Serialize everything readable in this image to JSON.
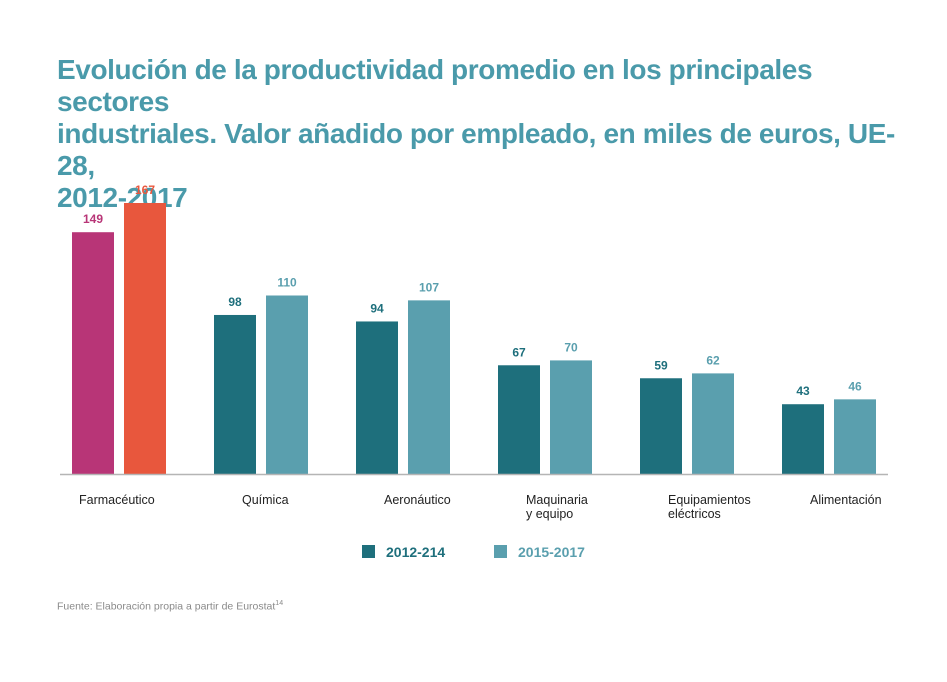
{
  "title": "Evolución de la productividad promedio en los principales sectores\nindustriales. Valor añadido por empleado, en miles de euros, UE-28,\n2012-2017",
  "source": {
    "text": "Fuente: Elaboración propia a partir de Eurostat",
    "footnote_mark": "14"
  },
  "colors": {
    "series1": "#1e6f7c",
    "series2": "#5a9fae",
    "highlight1": "#b83577",
    "highlight2": "#e8573d",
    "axis": "#b5b5b5",
    "title": "#4a9aaa"
  },
  "chart_data": {
    "type": "bar",
    "title": "Evolución de la productividad promedio en los principales sectores industriales. Valor añadido por empleado, en miles de euros, UE-28, 2012-2017",
    "xlabel": "",
    "ylabel": "",
    "ylim": [
      0,
      180
    ],
    "grid": false,
    "legend_position": "bottom-center",
    "categories": [
      [
        "Farmacéutico"
      ],
      [
        "Química"
      ],
      [
        "Aeronáutico"
      ],
      [
        "Maquinaria",
        "y equipo"
      ],
      [
        "Equipamientos",
        "eléctricos"
      ],
      [
        "Alimentación"
      ]
    ],
    "series": [
      {
        "name": "2012-214",
        "values": [
          149,
          98,
          94,
          67,
          59,
          43
        ]
      },
      {
        "name": "2015-2017",
        "values": [
          167,
          110,
          107,
          70,
          62,
          46
        ]
      }
    ]
  }
}
